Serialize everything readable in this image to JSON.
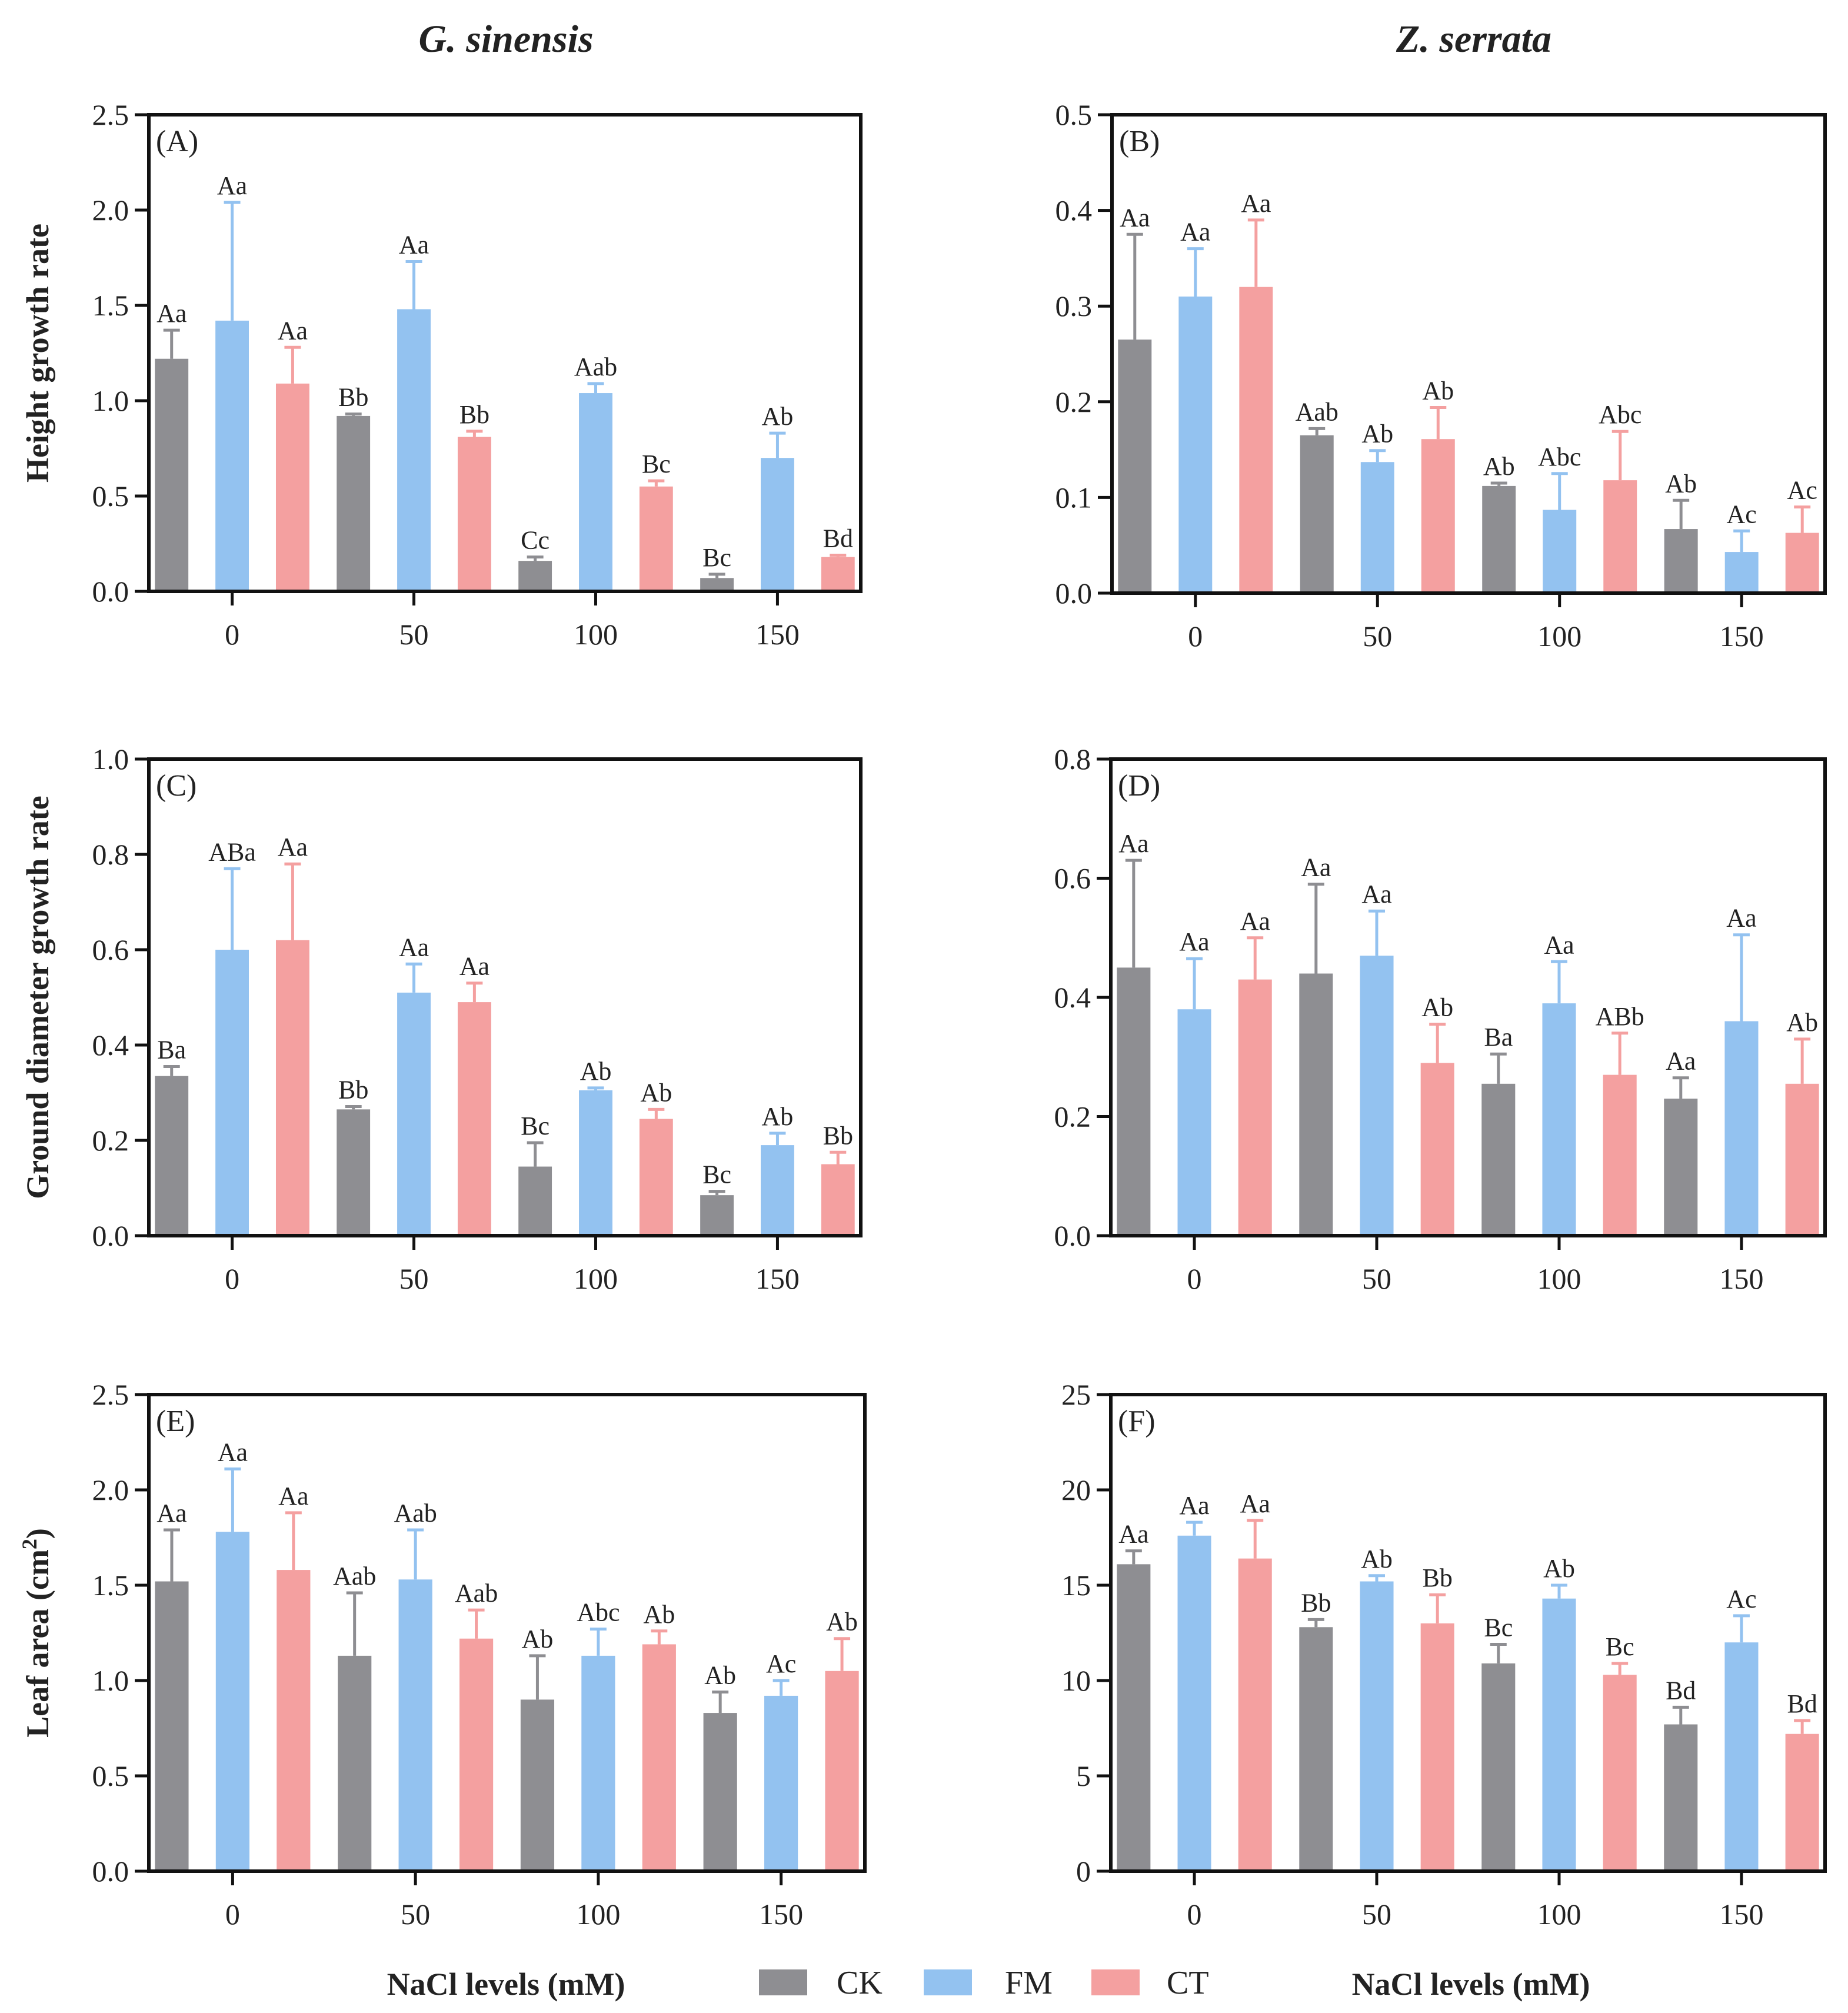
{
  "figure": {
    "column_titles": [
      "G. sinensis",
      "Z. serrata"
    ],
    "xlabel": "NaCl levels (mM)",
    "legend": [
      {
        "name": "CK",
        "color": "#8e8e92"
      },
      {
        "name": "FM",
        "color": "#93c2f0"
      },
      {
        "name": "CT",
        "color": "#f4a0a0"
      }
    ]
  },
  "chart_data": [
    {
      "type": "bar",
      "label": "(A)",
      "ylabel": "Height growth rate",
      "xlabel": "",
      "categories": [
        "0",
        "50",
        "100",
        "150"
      ],
      "ylim": [
        0,
        2.5
      ],
      "yticks": [
        "0.0",
        "0.5",
        "1.0",
        "1.5",
        "2.0",
        "2.5"
      ],
      "series": [
        {
          "name": "CK",
          "values": [
            1.22,
            0.92,
            0.16,
            0.07
          ],
          "errors": [
            0.15,
            0.01,
            0.02,
            0.02
          ],
          "letters": [
            "Aa",
            "Bb",
            "Cc",
            "Bc"
          ]
        },
        {
          "name": "FM",
          "values": [
            1.42,
            1.48,
            1.04,
            0.7
          ],
          "errors": [
            0.62,
            0.25,
            0.05,
            0.13
          ],
          "letters": [
            "Aa",
            "Aa",
            "Aab",
            "Ab"
          ]
        },
        {
          "name": "CT",
          "values": [
            1.09,
            0.81,
            0.55,
            0.18
          ],
          "errors": [
            0.19,
            0.03,
            0.03,
            0.01
          ],
          "letters": [
            "Aa",
            "Bb",
            "Bc",
            "Bd"
          ]
        }
      ]
    },
    {
      "type": "bar",
      "label": "(B)",
      "ylabel": "",
      "xlabel": "",
      "categories": [
        "0",
        "50",
        "100",
        "150"
      ],
      "ylim": [
        0,
        0.5
      ],
      "yticks": [
        "0.0",
        "0.1",
        "0.2",
        "0.3",
        "0.4",
        "0.5"
      ],
      "series": [
        {
          "name": "CK",
          "values": [
            0.265,
            0.165,
            0.112,
            0.067
          ],
          "errors": [
            0.11,
            0.007,
            0.003,
            0.03
          ],
          "letters": [
            "Aa",
            "Aab",
            "Ab",
            "Ab"
          ]
        },
        {
          "name": "FM",
          "values": [
            0.31,
            0.137,
            0.087,
            0.043
          ],
          "errors": [
            0.05,
            0.012,
            0.038,
            0.022
          ],
          "letters": [
            "Aa",
            "Ab",
            "Abc",
            "Ac"
          ]
        },
        {
          "name": "CT",
          "values": [
            0.32,
            0.161,
            0.118,
            0.063
          ],
          "errors": [
            0.07,
            0.033,
            0.051,
            0.027
          ],
          "letters": [
            "Aa",
            "Ab",
            "Abc",
            "Ac"
          ]
        }
      ]
    },
    {
      "type": "bar",
      "label": "(C)",
      "ylabel": "Ground diameter growth rate",
      "xlabel": "",
      "categories": [
        "0",
        "50",
        "100",
        "150"
      ],
      "ylim": [
        0,
        1.0
      ],
      "yticks": [
        "0.0",
        "0.2",
        "0.4",
        "0.6",
        "0.8",
        "1.0"
      ],
      "series": [
        {
          "name": "CK",
          "values": [
            0.335,
            0.265,
            0.145,
            0.085
          ],
          "errors": [
            0.02,
            0.006,
            0.05,
            0.008
          ],
          "letters": [
            "Ba",
            "Bb",
            "Bc",
            "Bc"
          ]
        },
        {
          "name": "FM",
          "values": [
            0.6,
            0.51,
            0.305,
            0.19
          ],
          "errors": [
            0.17,
            0.06,
            0.005,
            0.025
          ],
          "letters": [
            "ABa",
            "Aa",
            "Ab",
            "Ab"
          ]
        },
        {
          "name": "CT",
          "values": [
            0.62,
            0.49,
            0.245,
            0.15
          ],
          "errors": [
            0.16,
            0.04,
            0.02,
            0.025
          ],
          "letters": [
            "Aa",
            "Aa",
            "Ab",
            "Bb"
          ]
        }
      ]
    },
    {
      "type": "bar",
      "label": "(D)",
      "ylabel": "",
      "xlabel": "",
      "categories": [
        "0",
        "50",
        "100",
        "150"
      ],
      "ylim": [
        0,
        0.8
      ],
      "yticks": [
        "0.0",
        "0.2",
        "0.4",
        "0.6",
        "0.8"
      ],
      "series": [
        {
          "name": "CK",
          "values": [
            0.45,
            0.44,
            0.255,
            0.23
          ],
          "errors": [
            0.18,
            0.15,
            0.05,
            0.035
          ],
          "letters": [
            "Aa",
            "Aa",
            "Ba",
            "Aa"
          ]
        },
        {
          "name": "FM",
          "values": [
            0.38,
            0.47,
            0.39,
            0.36
          ],
          "errors": [
            0.085,
            0.075,
            0.07,
            0.145
          ],
          "letters": [
            "Aa",
            "Aa",
            "Aa",
            "Aa"
          ]
        },
        {
          "name": "CT",
          "values": [
            0.43,
            0.29,
            0.27,
            0.255
          ],
          "errors": [
            0.07,
            0.065,
            0.07,
            0.075
          ],
          "letters": [
            "Aa",
            "Ab",
            "ABb",
            "Ab"
          ]
        }
      ]
    },
    {
      "type": "bar",
      "label": "(E)",
      "ylabel": "Leaf area (cm",
      "ylabel_sup": "2",
      "ylabel_end": ")",
      "xlabel": "",
      "categories": [
        "0",
        "50",
        "100",
        "150"
      ],
      "ylim": [
        0,
        2.5
      ],
      "yticks": [
        "0.0",
        "0.5",
        "1.0",
        "1.5",
        "2.0",
        "2.5"
      ],
      "series": [
        {
          "name": "CK",
          "values": [
            1.52,
            1.13,
            0.9,
            0.83
          ],
          "errors": [
            0.27,
            0.33,
            0.23,
            0.11
          ],
          "letters": [
            "Aa",
            "Aab",
            "Ab",
            "Ab"
          ]
        },
        {
          "name": "FM",
          "values": [
            1.78,
            1.53,
            1.13,
            0.92
          ],
          "errors": [
            0.33,
            0.26,
            0.14,
            0.08
          ],
          "letters": [
            "Aa",
            "Aab",
            "Abc",
            "Ac"
          ]
        },
        {
          "name": "CT",
          "values": [
            1.58,
            1.22,
            1.19,
            1.05
          ],
          "errors": [
            0.3,
            0.15,
            0.07,
            0.17
          ],
          "letters": [
            "Aa",
            "Aab",
            "Ab",
            "Ab"
          ]
        }
      ]
    },
    {
      "type": "bar",
      "label": "(F)",
      "ylabel": "",
      "xlabel": "",
      "categories": [
        "0",
        "50",
        "100",
        "150"
      ],
      "ylim": [
        0,
        25
      ],
      "yticks": [
        "0",
        "5",
        "10",
        "15",
        "20",
        "25"
      ],
      "series": [
        {
          "name": "CK",
          "values": [
            16.1,
            12.8,
            10.9,
            7.7
          ],
          "errors": [
            0.7,
            0.4,
            1.0,
            0.9
          ],
          "letters": [
            "Aa",
            "Bb",
            "Bc",
            "Bd"
          ]
        },
        {
          "name": "FM",
          "values": [
            17.6,
            15.2,
            14.3,
            12.0
          ],
          "errors": [
            0.7,
            0.3,
            0.7,
            1.4
          ],
          "letters": [
            "Aa",
            "Ab",
            "Ab",
            "Ac"
          ]
        },
        {
          "name": "CT",
          "values": [
            16.4,
            13.0,
            10.3,
            7.2
          ],
          "errors": [
            2.0,
            1.5,
            0.6,
            0.7
          ],
          "letters": [
            "Aa",
            "Bb",
            "Bc",
            "Bd"
          ]
        }
      ]
    }
  ]
}
